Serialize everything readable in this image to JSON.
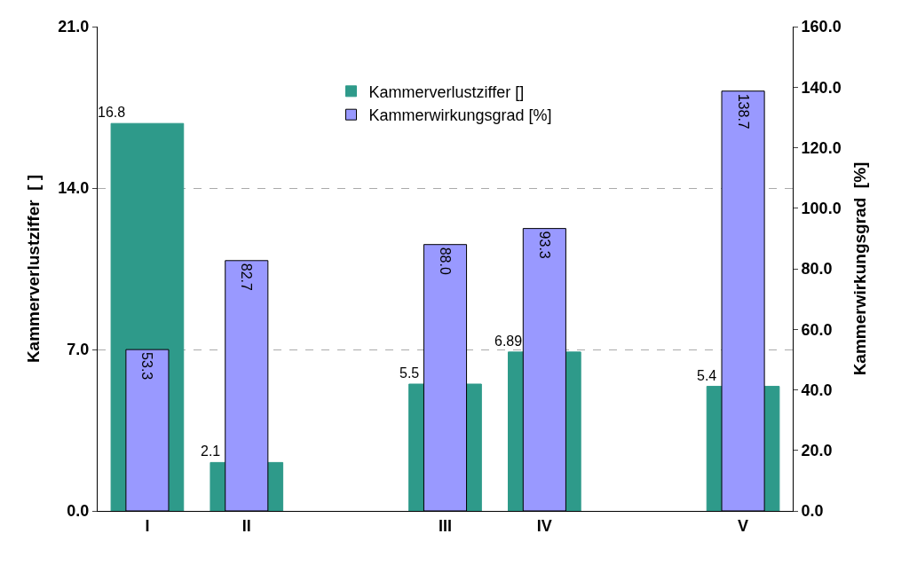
{
  "chart_data": {
    "type": "bar",
    "categories": [
      "I",
      "II",
      null,
      "III",
      "IV",
      null,
      "V"
    ],
    "ylabel": "Kammerverlustziffer  [ ]",
    "y2label": "Kammerwirkungsgrad  [%]",
    "series": [
      {
        "name": "Kammerverlustziffer []",
        "color": "#2e9a8a",
        "values": [
          16.8,
          2.1,
          null,
          5.5,
          6.89,
          null,
          5.4
        ],
        "value_labels": [
          "16.8",
          "2.1",
          null,
          "5.5",
          "6.89",
          null,
          "5.4"
        ]
      },
      {
        "name": "Kammerwirkungsgrad [%]",
        "color": "#9999ff",
        "axis": "y2",
        "values": [
          53.3,
          82.7,
          null,
          88.0,
          93.3,
          null,
          138.7
        ],
        "value_labels": [
          "53.3",
          "82.7",
          null,
          "88.0",
          "93.3",
          null,
          "138.7"
        ]
      }
    ],
    "ylim": [
      0,
      21
    ],
    "yticks": [
      {
        "value": 0,
        "label": "0.0"
      },
      {
        "value": 7,
        "label": "7.0"
      },
      {
        "value": 14,
        "label": "14.0"
      },
      {
        "value": 21,
        "label": "21.0"
      }
    ],
    "y2lim": [
      0,
      160
    ],
    "y2ticks": [
      {
        "value": 0,
        "label": "0.0"
      },
      {
        "value": 20,
        "label": "20.0"
      },
      {
        "value": 40,
        "label": "40.0"
      },
      {
        "value": 60,
        "label": "60.0"
      },
      {
        "value": 80,
        "label": "80.0"
      },
      {
        "value": 100,
        "label": "100.0"
      },
      {
        "value": 120,
        "label": "120.0"
      },
      {
        "value": 140,
        "label": "140.0"
      },
      {
        "value": 160,
        "label": "160.0"
      }
    ],
    "grid": "y",
    "legend": "top"
  }
}
